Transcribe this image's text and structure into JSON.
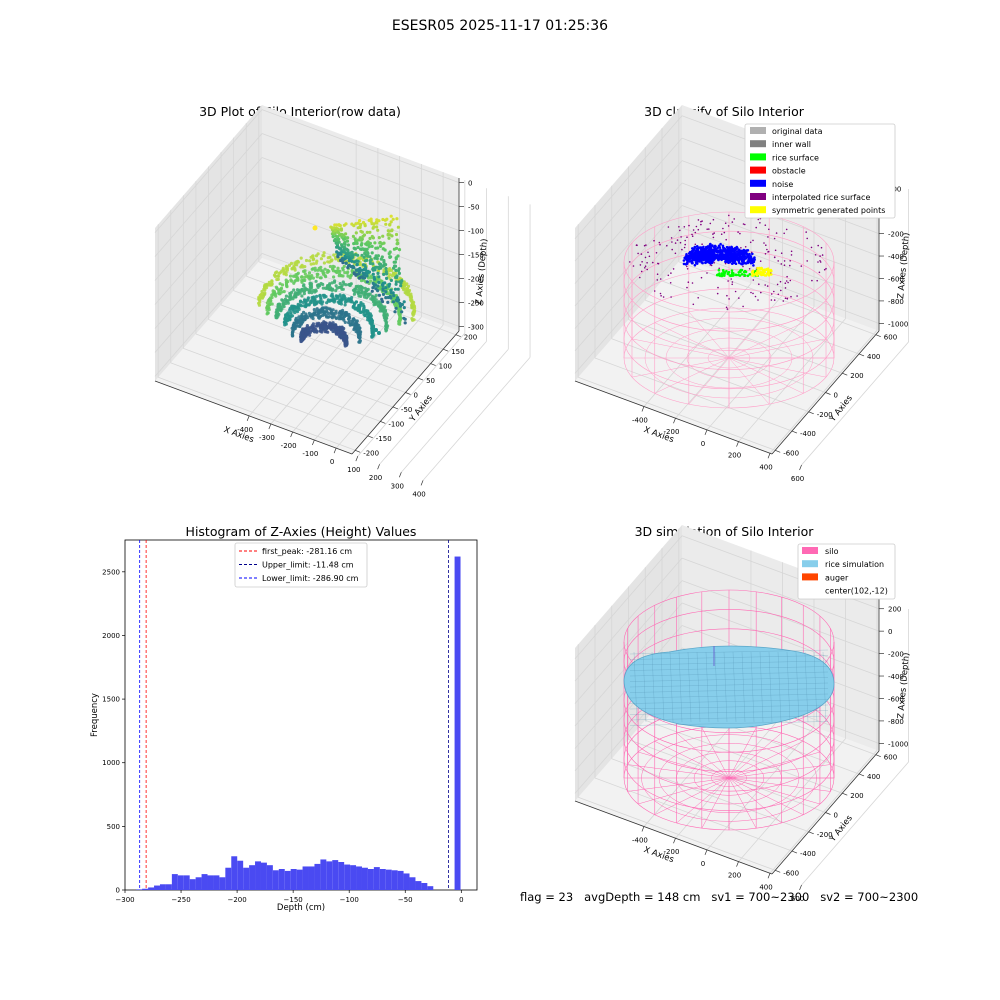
{
  "suptitle": "ESESR05 2025-11-17 01:25:36",
  "footer": "flag = 23   avgDepth = 148 cm   sv1 = 700~2300   sv2 = 700~2300",
  "chart_data": [
    {
      "type": "scatter",
      "projection": "3d",
      "title": "3D Plot of Silo Interior(row data)",
      "xlabel": "X Axies",
      "ylabel": "Y Axies",
      "zlabel": "Z Axies (Depth)",
      "xticks": [
        "-400",
        "-300",
        "-200",
        "-100",
        "0",
        "100",
        "200",
        "300",
        "400"
      ],
      "yticks": [
        "-200",
        "-150",
        "-100",
        "-50",
        "0",
        "50",
        "100",
        "150",
        "200"
      ],
      "zticks": [
        "0",
        "-50",
        "-100",
        "-150",
        "-200",
        "-250",
        "-300"
      ],
      "xlim": [
        -450,
        420
      ],
      "ylim": [
        -210,
        210
      ],
      "zlim": [
        -310,
        10
      ],
      "colormap": "viridis",
      "description_of_points": "bowl-shaped curved bands of rice-surface points; depth ranges roughly 0 to -290"
    },
    {
      "type": "scatter",
      "projection": "3d",
      "title": "3D classify of Silo Interior",
      "xlabel": "X Axies",
      "ylabel": "Y Axies",
      "zlabel": "Z Axies (Depth)",
      "xticks": [
        "-400",
        "-200",
        "0",
        "200",
        "400",
        "600"
      ],
      "yticks": [
        "-600",
        "-400",
        "-200",
        "0",
        "200",
        "400",
        "600"
      ],
      "zticks": [
        "200",
        "0",
        "-200",
        "-400",
        "-600",
        "-800",
        "-1000"
      ],
      "xlim": [
        -500,
        700
      ],
      "ylim": [
        -700,
        700
      ],
      "zlim": [
        -1050,
        250
      ],
      "legend_location": "upper right",
      "legend": [
        {
          "label": "original data",
          "color": "#b0b0b0"
        },
        {
          "label": "inner wall",
          "color": "#808080"
        },
        {
          "label": "rice surface",
          "color": "#00ff00"
        },
        {
          "label": "obstacle",
          "color": "#ff0000"
        },
        {
          "label": "noise",
          "color": "#0000ff"
        },
        {
          "label": "interpolated rice surface",
          "color": "#800080"
        },
        {
          "label": "symmetric generated points",
          "color": "#ffff00"
        }
      ],
      "wireframe_color": "#ff9ec8"
    },
    {
      "type": "bar",
      "title": "Histogram of Z-Axies (Height) Values",
      "xlabel": "Depth (cm)",
      "ylabel": "Frequency",
      "xlim": [
        -300,
        14
      ],
      "ylim": [
        0,
        2750
      ],
      "xticks": [
        -300,
        -250,
        -200,
        -150,
        -100,
        -50,
        0
      ],
      "yticks": [
        0,
        500,
        1000,
        1500,
        2000,
        2500
      ],
      "bar_color": "#4a4af2",
      "bin_width": 5.3,
      "bins": [
        {
          "x": -290.0,
          "count": 5
        },
        {
          "x": -284.7,
          "count": 10
        },
        {
          "x": -279.4,
          "count": 20
        },
        {
          "x": -274.1,
          "count": 35
        },
        {
          "x": -268.8,
          "count": 45
        },
        {
          "x": -263.5,
          "count": 45
        },
        {
          "x": -258.2,
          "count": 125
        },
        {
          "x": -252.9,
          "count": 115
        },
        {
          "x": -247.6,
          "count": 115
        },
        {
          "x": -242.3,
          "count": 85
        },
        {
          "x": -237.0,
          "count": 100
        },
        {
          "x": -231.7,
          "count": 125
        },
        {
          "x": -226.4,
          "count": 115
        },
        {
          "x": -221.1,
          "count": 115
        },
        {
          "x": -215.8,
          "count": 100
        },
        {
          "x": -210.5,
          "count": 175
        },
        {
          "x": -205.2,
          "count": 265
        },
        {
          "x": -199.9,
          "count": 230
        },
        {
          "x": -194.6,
          "count": 175
        },
        {
          "x": -189.3,
          "count": 195
        },
        {
          "x": -184.0,
          "count": 225
        },
        {
          "x": -178.7,
          "count": 215
        },
        {
          "x": -173.4,
          "count": 195
        },
        {
          "x": -168.1,
          "count": 155
        },
        {
          "x": -162.8,
          "count": 165
        },
        {
          "x": -157.5,
          "count": 150
        },
        {
          "x": -152.2,
          "count": 165
        },
        {
          "x": -146.9,
          "count": 160
        },
        {
          "x": -141.6,
          "count": 185
        },
        {
          "x": -136.3,
          "count": 185
        },
        {
          "x": -131.0,
          "count": 205
        },
        {
          "x": -125.7,
          "count": 240
        },
        {
          "x": -120.4,
          "count": 225
        },
        {
          "x": -115.1,
          "count": 235
        },
        {
          "x": -109.8,
          "count": 220
        },
        {
          "x": -104.5,
          "count": 200
        },
        {
          "x": -99.2,
          "count": 195
        },
        {
          "x": -93.9,
          "count": 185
        },
        {
          "x": -88.6,
          "count": 175
        },
        {
          "x": -83.3,
          "count": 165
        },
        {
          "x": -78.0,
          "count": 180
        },
        {
          "x": -72.7,
          "count": 165
        },
        {
          "x": -67.4,
          "count": 160
        },
        {
          "x": -62.1,
          "count": 155
        },
        {
          "x": -56.8,
          "count": 150
        },
        {
          "x": -51.5,
          "count": 130
        },
        {
          "x": -46.2,
          "count": 100
        },
        {
          "x": -40.9,
          "count": 70
        },
        {
          "x": -35.6,
          "count": 55
        },
        {
          "x": -30.3,
          "count": 30
        },
        {
          "x": -6.0,
          "count": 2620
        }
      ],
      "vlines": [
        {
          "label": "first_peak: -281.16 cm",
          "x": -281.16,
          "color": "#ff0000"
        },
        {
          "label": "Upper_limit: -11.48 cm",
          "x": -11.48,
          "color": "#00008b"
        },
        {
          "label": "Lower_limit: -286.90 cm",
          "x": -286.9,
          "color": "#0000ff"
        }
      ],
      "legend_location": "upper center"
    },
    {
      "type": "scatter",
      "projection": "3d",
      "title": "3D simulation of Silo Interior",
      "xlabel": "X Axies",
      "ylabel": "Y Axies",
      "zlabel": "Z Axies (Depth)",
      "xticks": [
        "-400",
        "-200",
        "0",
        "200",
        "400",
        "600"
      ],
      "yticks": [
        "-600",
        "-400",
        "-200",
        "0",
        "200",
        "400",
        "600"
      ],
      "zticks": [
        "200",
        "0",
        "-200",
        "-400",
        "-600",
        "-800",
        "-1000"
      ],
      "xlim": [
        -500,
        700
      ],
      "ylim": [
        -700,
        700
      ],
      "zlim": [
        -1050,
        250
      ],
      "legend_location": "upper right",
      "legend": [
        {
          "label": "silo",
          "color": "#ff69b4"
        },
        {
          "label": "rice simulation",
          "color": "#87ceeb"
        },
        {
          "label": "auger",
          "color": "#ff4500"
        },
        {
          "label": "center(102,-12)",
          "color": "none"
        }
      ]
    }
  ]
}
